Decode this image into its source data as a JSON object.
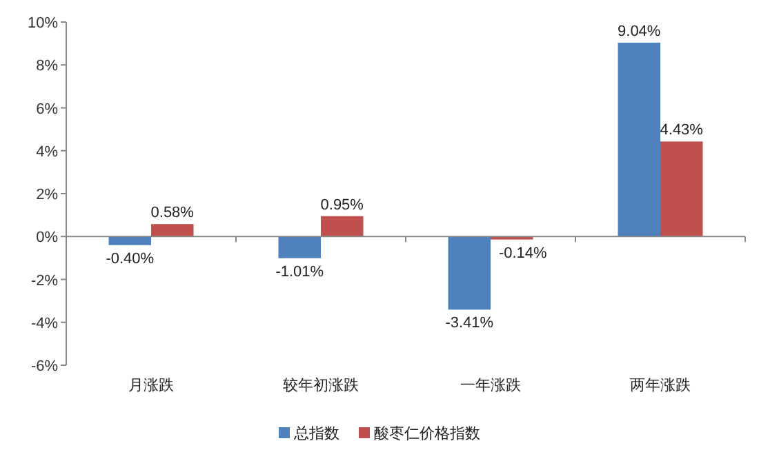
{
  "chart_data": {
    "type": "bar",
    "categories": [
      "月涨跌",
      "较年初涨跌",
      "一年涨跌",
      "两年涨跌"
    ],
    "series": [
      {
        "name": "总指数",
        "color": "#4f81bd",
        "values": [
          -0.4,
          -1.01,
          -3.41,
          9.04
        ],
        "value_labels": [
          "-0.40%",
          "-1.01%",
          "-3.41%",
          "9.04%"
        ]
      },
      {
        "name": "酸枣仁价格指数",
        "color": "#c0504d",
        "values": [
          0.58,
          0.95,
          -0.14,
          4.43
        ],
        "value_labels": [
          "0.58%",
          "0.95%",
          "-0.14%",
          "4.43%"
        ]
      }
    ],
    "ylim": [
      -6,
      10
    ],
    "yticks": [
      {
        "value": -6,
        "label": "-6%"
      },
      {
        "value": -4,
        "label": "-4%"
      },
      {
        "value": -2,
        "label": "-2%"
      },
      {
        "value": 0,
        "label": "0%"
      },
      {
        "value": 2,
        "label": "2%"
      },
      {
        "value": 4,
        "label": "4%"
      },
      {
        "value": 6,
        "label": "6%"
      },
      {
        "value": 8,
        "label": "8%"
      },
      {
        "value": 10,
        "label": "10%"
      }
    ],
    "legend": "bottom"
  }
}
